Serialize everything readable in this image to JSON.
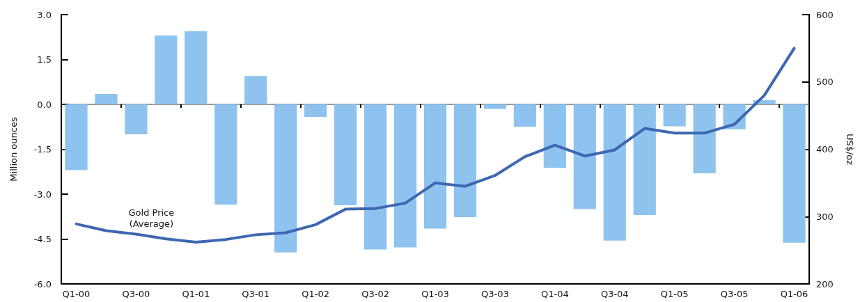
{
  "chart_data": {
    "type": "bar",
    "ylabel": "Million ounces",
    "y2label": "US$/oz",
    "categories": [
      "Q1-00",
      null,
      "Q3-00",
      null,
      "Q1-01",
      null,
      "Q3-01",
      null,
      "Q1-02",
      null,
      "Q3-02",
      null,
      "Q1-03",
      null,
      "Q3-03",
      null,
      "Q1-04",
      null,
      "Q3-04",
      null,
      "Q1-05",
      null,
      "Q3-05",
      null,
      "Q1-06"
    ],
    "series": [
      {
        "color": "#8dc3ee",
        "values": [
          -2.2,
          0.35,
          -1.0,
          2.3,
          2.45,
          -3.35,
          0.95,
          -4.95,
          -0.42,
          -3.37,
          -4.85,
          -4.78,
          -4.15,
          -3.77,
          -0.15,
          -0.75,
          -2.12,
          -3.5,
          -4.55,
          -3.7,
          -0.73,
          -2.3,
          -0.83,
          0.14,
          -4.62
        ]
      },
      {
        "type": "line",
        "name": "Gold Price\n(Average)",
        "axis": "y2",
        "color": "#3e67b1",
        "line_style": "solid",
        "values": [
          289,
          279,
          274,
          267,
          262,
          266,
          273,
          276,
          288,
          311,
          312,
          320,
          350,
          345,
          361,
          389,
          406,
          390,
          399,
          431,
          424,
          424,
          437,
          480,
          550
        ]
      }
    ],
    "ylim": [
      -6,
      3
    ],
    "yticks": [
      {
        "value": -6,
        "label": "-6.0"
      },
      -4.5,
      {
        "value": -3,
        "label": "-3.0"
      },
      -1.5,
      {
        "value": 0,
        "label": "0.0"
      },
      1.5,
      {
        "value": 3,
        "label": "3.0"
      }
    ],
    "y2lim": [
      200,
      600
    ],
    "y2ticks": [
      200,
      300,
      400,
      500,
      600
    ],
    "legend": false,
    "marker": "none"
  }
}
